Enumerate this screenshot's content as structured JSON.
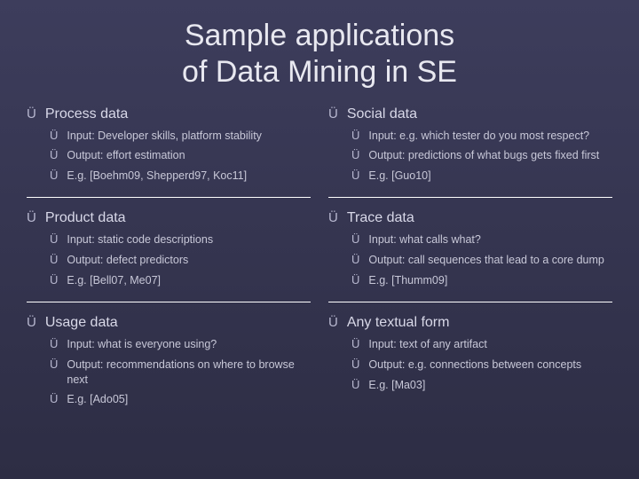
{
  "title_line1": "Sample applications",
  "title_line2": "of Data Mining in SE",
  "left_sections": [
    {
      "header": "Process data",
      "items": [
        "Input: Developer skills, platform stability",
        "Output: effort estimation",
        "E.g. [Boehm09, Shepperd97, Koc11]"
      ]
    },
    {
      "header": "Product data",
      "items": [
        "Input: static code descriptions",
        "Output: defect predictors",
        "E.g. [Bell07, Me07]"
      ]
    },
    {
      "header": "Usage data",
      "items": [
        "Input:  what is everyone  using?",
        "Output: recommendations on where to browse next",
        "E.g. [Ado05]"
      ]
    }
  ],
  "right_sections": [
    {
      "header": "Social data",
      "items": [
        "Input: e.g. which tester do you most respect?",
        "Output: predictions of what bugs gets fixed first",
        "E.g. [Guo10]"
      ]
    },
    {
      "header": "Trace data",
      "items": [
        "Input: what calls what?",
        "Output: call sequences that lead to a core dump",
        "E.g. [Thumm09]"
      ]
    },
    {
      "header": "Any textual form",
      "items": [
        "Input: text of any artifact",
        "Output: e.g. connections between concepts",
        "E.g. [Ma03]"
      ]
    }
  ]
}
